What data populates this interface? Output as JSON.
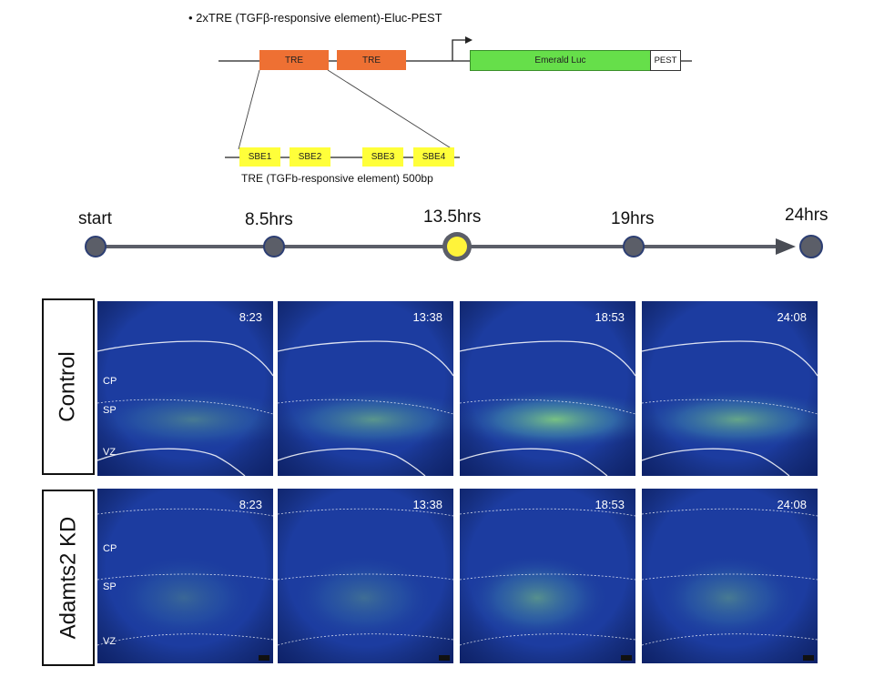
{
  "construct": {
    "title": "• 2xTRE (TGFβ-responsive element)-Eluc-PEST",
    "tre_labels": [
      "TRE",
      "TRE"
    ],
    "luc_label": "Emerald Luc",
    "pest_label": "PEST",
    "sbe_labels": [
      "SBE1",
      "SBE2",
      "SBE3",
      "SBE4"
    ],
    "tre_caption": "TRE (TGFb-responsive element) 500bp"
  },
  "timeline": {
    "points": [
      "start",
      "8.5hrs",
      "13.5hrs",
      "19hrs",
      "24hrs"
    ],
    "highlighted": "13.5hrs"
  },
  "colors": {
    "tre": "#ee7033",
    "sbe": "#ffff3a",
    "luc": "#66df4a",
    "timeline_dot": "#5b5e68",
    "timeline_highlight": "#fff33a",
    "panel_bg": "#1c3ca0",
    "signal": "#8ee07c"
  },
  "panels": {
    "groups": [
      {
        "label": "Control",
        "times": [
          "8:23",
          "13:38",
          "18:53",
          "24:08"
        ],
        "signal": [
          0.45,
          0.65,
          0.95,
          0.75
        ]
      },
      {
        "label": "Adamts2 KD",
        "times": [
          "8:23",
          "13:38",
          "18:53",
          "24:08"
        ],
        "signal": [
          0.3,
          0.35,
          0.6,
          0.45
        ]
      }
    ],
    "zones": [
      "CP",
      "SP",
      "VZ"
    ]
  }
}
